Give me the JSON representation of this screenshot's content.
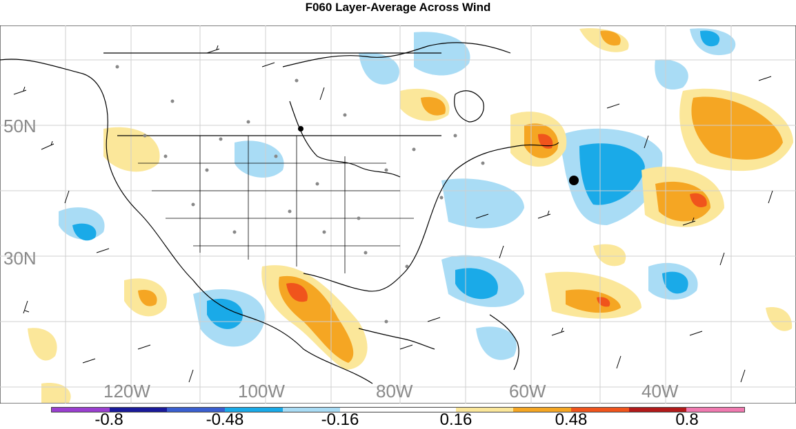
{
  "title": "F060 Layer-Average Across Wind",
  "lat_labels": [
    "50N",
    "30N"
  ],
  "lon_labels": [
    "120W",
    "100W",
    "80W",
    "60W",
    "40W"
  ],
  "colorbar": {
    "colors": [
      "#9a3fd0",
      "#1a1a9a",
      "#3a5fd0",
      "#1aaae8",
      "#a9dcf5",
      "#ffffff",
      "#ffffff",
      "#fbe79a",
      "#f5a623",
      "#f0541c",
      "#b21a1a",
      "#f07ab0"
    ],
    "tick_labels": [
      "-0.8",
      "-0.48",
      "-0.16",
      "0.16",
      "0.48",
      "0.8"
    ]
  },
  "colors": {
    "light_blue": "#a9dcf5",
    "blue": "#1aaae8",
    "light_yellow": "#fbe79a",
    "orange": "#f5a623",
    "red_orange": "#f0541c",
    "grid": "#cfcfcf",
    "coast": "#000000",
    "station_dot": "#888888"
  }
}
